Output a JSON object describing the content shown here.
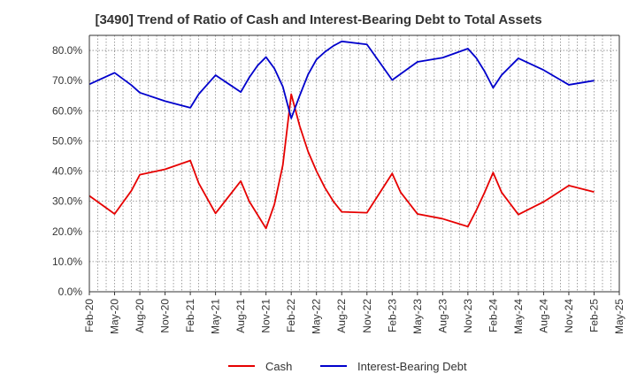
{
  "chart_data": {
    "type": "line",
    "title": "[3490]  Trend of Ratio of Cash and Interest-Bearing Debt to Total Assets",
    "xlabel": "",
    "ylabel": "",
    "ylim": [
      0,
      85
    ],
    "yticks": [
      0,
      10,
      20,
      30,
      40,
      50,
      60,
      70,
      80
    ],
    "ytick_labels": [
      "0.0%",
      "10.0%",
      "20.0%",
      "30.0%",
      "40.0%",
      "50.0%",
      "60.0%",
      "70.0%",
      "80.0%"
    ],
    "x_months": [
      "Feb-20",
      "Mar-20",
      "Apr-20",
      "May-20",
      "Jun-20",
      "Jul-20",
      "Aug-20",
      "Sep-20",
      "Oct-20",
      "Nov-20",
      "Dec-20",
      "Jan-21",
      "Feb-21",
      "Mar-21",
      "Apr-21",
      "May-21",
      "Jun-21",
      "Jul-21",
      "Aug-21",
      "Sep-21",
      "Oct-21",
      "Nov-21",
      "Dec-21",
      "Jan-22",
      "Feb-22",
      "Mar-22",
      "Apr-22",
      "May-22",
      "Jun-22",
      "Jul-22",
      "Aug-22",
      "Sep-22",
      "Oct-22",
      "Nov-22",
      "Dec-22",
      "Jan-23",
      "Feb-23",
      "Mar-23",
      "Apr-23",
      "May-23",
      "Jun-23",
      "Jul-23",
      "Aug-23",
      "Sep-23",
      "Oct-23",
      "Nov-23",
      "Dec-23",
      "Jan-24",
      "Feb-24",
      "Mar-24",
      "Apr-24",
      "May-24",
      "Jun-24",
      "Jul-24",
      "Aug-24",
      "Sep-24",
      "Oct-24",
      "Nov-24",
      "Dec-24",
      "Jan-25",
      "Feb-25",
      "Mar-25",
      "Apr-25",
      "May-25"
    ],
    "x_tick_labels": [
      "Feb-20",
      "May-20",
      "Aug-20",
      "Nov-20",
      "Feb-21",
      "May-21",
      "Aug-21",
      "Nov-21",
      "Feb-22",
      "May-22",
      "Aug-22",
      "Nov-22",
      "Feb-23",
      "May-23",
      "Aug-23",
      "Nov-23",
      "Feb-24",
      "May-24",
      "Aug-24",
      "Nov-24",
      "Feb-25",
      "May-25"
    ],
    "legend_position": "bottom-center",
    "series": [
      {
        "name": "Cash",
        "color": "#e60000",
        "points": [
          {
            "x": "Feb-20",
            "y": 31.8
          },
          {
            "x": "May-20",
            "y": 25.8
          },
          {
            "x": "Jul-20",
            "y": 33.5
          },
          {
            "x": "Aug-20",
            "y": 38.8
          },
          {
            "x": "Nov-20",
            "y": 40.6
          },
          {
            "x": "Feb-21",
            "y": 43.5
          },
          {
            "x": "Mar-21",
            "y": 36.0
          },
          {
            "x": "May-21",
            "y": 26.0
          },
          {
            "x": "Aug-21",
            "y": 36.7
          },
          {
            "x": "Sep-21",
            "y": 30.0
          },
          {
            "x": "Nov-21",
            "y": 21.0
          },
          {
            "x": "Dec-21",
            "y": 29.0
          },
          {
            "x": "Jan-22",
            "y": 42.0
          },
          {
            "x": "Feb-22",
            "y": 65.5
          },
          {
            "x": "Mar-22",
            "y": 55.0
          },
          {
            "x": "Apr-22",
            "y": 46.5
          },
          {
            "x": "May-22",
            "y": 40.0
          },
          {
            "x": "Jun-22",
            "y": 34.5
          },
          {
            "x": "Jul-22",
            "y": 30.0
          },
          {
            "x": "Aug-22",
            "y": 26.5
          },
          {
            "x": "Nov-22",
            "y": 26.2
          },
          {
            "x": "Feb-23",
            "y": 39.2
          },
          {
            "x": "Mar-23",
            "y": 33.0
          },
          {
            "x": "May-23",
            "y": 25.8
          },
          {
            "x": "Aug-23",
            "y": 24.2
          },
          {
            "x": "Nov-23",
            "y": 21.6
          },
          {
            "x": "Dec-23",
            "y": 27.0
          },
          {
            "x": "Jan-24",
            "y": 33.0
          },
          {
            "x": "Feb-24",
            "y": 39.5
          },
          {
            "x": "Mar-24",
            "y": 33.0
          },
          {
            "x": "May-24",
            "y": 25.6
          },
          {
            "x": "Aug-24",
            "y": 29.8
          },
          {
            "x": "Nov-24",
            "y": 35.2
          },
          {
            "x": "Feb-25",
            "y": 33.1
          }
        ]
      },
      {
        "name": "Interest-Bearing Debt",
        "color": "#0000cc",
        "points": [
          {
            "x": "Feb-20",
            "y": 68.8
          },
          {
            "x": "May-20",
            "y": 72.6
          },
          {
            "x": "Jul-20",
            "y": 68.5
          },
          {
            "x": "Aug-20",
            "y": 66.0
          },
          {
            "x": "Nov-20",
            "y": 63.2
          },
          {
            "x": "Feb-21",
            "y": 61.0
          },
          {
            "x": "Mar-21",
            "y": 65.5
          },
          {
            "x": "May-21",
            "y": 71.8
          },
          {
            "x": "Aug-21",
            "y": 66.2
          },
          {
            "x": "Sep-21",
            "y": 71.0
          },
          {
            "x": "Oct-21",
            "y": 75.0
          },
          {
            "x": "Nov-21",
            "y": 77.8
          },
          {
            "x": "Dec-21",
            "y": 74.0
          },
          {
            "x": "Jan-22",
            "y": 68.0
          },
          {
            "x": "Feb-22",
            "y": 57.5
          },
          {
            "x": "Mar-22",
            "y": 65.0
          },
          {
            "x": "Apr-22",
            "y": 72.0
          },
          {
            "x": "May-22",
            "y": 77.0
          },
          {
            "x": "Jun-22",
            "y": 79.5
          },
          {
            "x": "Jul-22",
            "y": 81.5
          },
          {
            "x": "Aug-22",
            "y": 83.0
          },
          {
            "x": "Nov-22",
            "y": 82.0
          },
          {
            "x": "Feb-23",
            "y": 70.2
          },
          {
            "x": "May-23",
            "y": 76.2
          },
          {
            "x": "Aug-23",
            "y": 77.6
          },
          {
            "x": "Nov-23",
            "y": 80.6
          },
          {
            "x": "Dec-23",
            "y": 77.5
          },
          {
            "x": "Jan-24",
            "y": 73.0
          },
          {
            "x": "Feb-24",
            "y": 67.6
          },
          {
            "x": "Mar-24",
            "y": 71.8
          },
          {
            "x": "May-24",
            "y": 77.4
          },
          {
            "x": "Aug-24",
            "y": 73.5
          },
          {
            "x": "Nov-24",
            "y": 68.6
          },
          {
            "x": "Feb-25",
            "y": 70.0
          }
        ]
      }
    ]
  }
}
